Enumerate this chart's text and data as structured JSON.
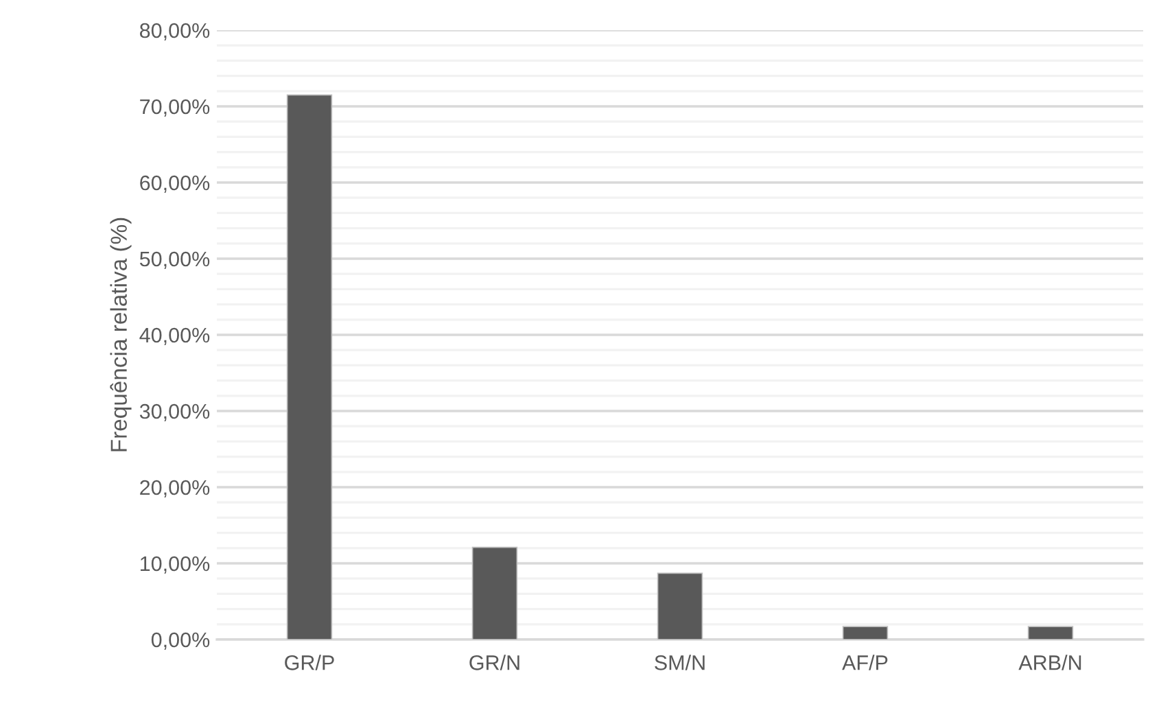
{
  "chart_data": {
    "type": "bar",
    "ylabel": "Frequência relativa (%)",
    "categories": [
      "GR/P",
      "GR/N",
      "SM/N",
      "AF/P",
      "ARB/N"
    ],
    "values": [
      71.5,
      12.1,
      8.7,
      1.7,
      1.7
    ],
    "color": "#595959",
    "ylim": [
      0,
      80
    ],
    "yticks": [
      {
        "value": 0,
        "label": "0,00%"
      },
      {
        "value": 2,
        "label": null
      },
      {
        "value": 4,
        "label": null
      },
      {
        "value": 6,
        "label": null
      },
      {
        "value": 8,
        "label": null
      },
      {
        "value": 10,
        "label": "10,00%"
      },
      {
        "value": 12,
        "label": null
      },
      {
        "value": 14,
        "label": null
      },
      {
        "value": 16,
        "label": null
      },
      {
        "value": 18,
        "label": null
      },
      {
        "value": 20,
        "label": "20,00%"
      },
      {
        "value": 22,
        "label": null
      },
      {
        "value": 24,
        "label": null
      },
      {
        "value": 26,
        "label": null
      },
      {
        "value": 28,
        "label": null
      },
      {
        "value": 30,
        "label": "30,00%"
      },
      {
        "value": 32,
        "label": null
      },
      {
        "value": 34,
        "label": null
      },
      {
        "value": 36,
        "label": null
      },
      {
        "value": 38,
        "label": null
      },
      {
        "value": 40,
        "label": "40,00%"
      },
      {
        "value": 42,
        "label": null
      },
      {
        "value": 44,
        "label": null
      },
      {
        "value": 46,
        "label": null
      },
      {
        "value": 48,
        "label": null
      },
      {
        "value": 50,
        "label": "50,00%"
      },
      {
        "value": 52,
        "label": null
      },
      {
        "value": 54,
        "label": null
      },
      {
        "value": 56,
        "label": null
      },
      {
        "value": 58,
        "label": null
      },
      {
        "value": 60,
        "label": "60,00%"
      },
      {
        "value": 62,
        "label": null
      },
      {
        "value": 64,
        "label": null
      },
      {
        "value": 66,
        "label": null
      },
      {
        "value": 68,
        "label": null
      },
      {
        "value": 70,
        "label": "70,00%"
      },
      {
        "value": 72,
        "label": null
      },
      {
        "value": 74,
        "label": null
      },
      {
        "value": 76,
        "label": null
      },
      {
        "value": 78,
        "label": null
      },
      {
        "value": 80,
        "label": "80,00%"
      }
    ],
    "grid": "y"
  }
}
